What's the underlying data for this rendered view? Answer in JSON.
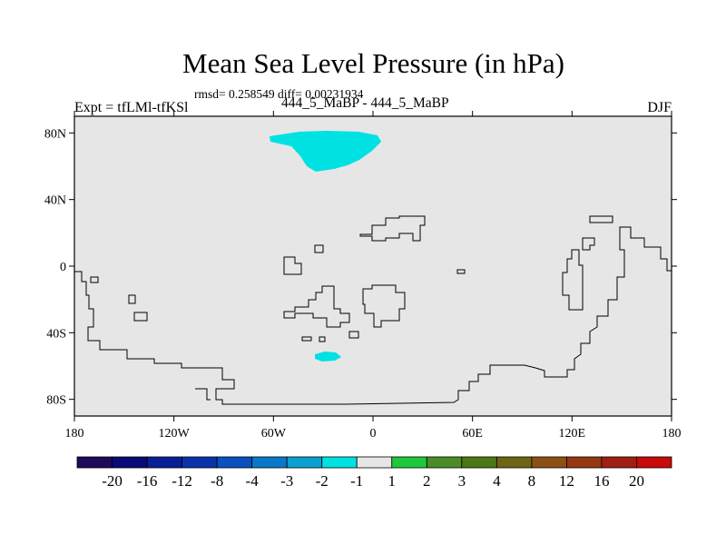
{
  "title": "Mean Sea Level Pressure (in hPa)",
  "stats": "rmsd= 0.258549 diff= 0.00231934",
  "experiment": "Expt = tfLMl-tfKSl",
  "subtitle": "444_5_MaBP - 444_5_MaBP",
  "season": "DJF",
  "map": {
    "projection": "cylindrical equidistant",
    "lon_range": [
      -180,
      180
    ],
    "lat_range": [
      -90,
      90
    ],
    "background_color": "#e6e6e6",
    "coastline_color": "#000000",
    "lat_ticks": [
      {
        "value": 80,
        "label": "80N"
      },
      {
        "value": 40,
        "label": "40N"
      },
      {
        "value": 0,
        "label": "0"
      },
      {
        "value": -40,
        "label": "40S"
      },
      {
        "value": -80,
        "label": "80S"
      }
    ],
    "lon_ticks": [
      {
        "value": -180,
        "label": "180"
      },
      {
        "value": -120,
        "label": "120W"
      },
      {
        "value": -60,
        "label": "60W"
      },
      {
        "value": 0,
        "label": "0"
      },
      {
        "value": 60,
        "label": "60E"
      },
      {
        "value": 120,
        "label": "120E"
      },
      {
        "value": 180,
        "label": "180"
      }
    ],
    "shaded_regions": [
      {
        "name": "arctic",
        "color": "#00e1e1",
        "bin": "-2 to -1"
      },
      {
        "name": "southern-ocean",
        "color": "#00e1e1",
        "bin": "-2 to -1"
      }
    ]
  },
  "colorbar": {
    "colors": [
      "#1e0a5a",
      "#0a0a78",
      "#0a1e96",
      "#0a32aa",
      "#0a50be",
      "#0a78c8",
      "#0aa0d2",
      "#00e1e1",
      "#e6e6e6",
      "#1ec83c",
      "#4b8c28",
      "#4b7814",
      "#6e6414",
      "#8c5014",
      "#963714",
      "#a01e14",
      "#c80a0a"
    ],
    "labels": [
      "-20",
      "-16",
      "-12",
      "-8",
      "-4",
      "-3",
      "-2",
      "-1",
      "1",
      "2",
      "3",
      "4",
      "8",
      "12",
      "16",
      "20"
    ]
  }
}
